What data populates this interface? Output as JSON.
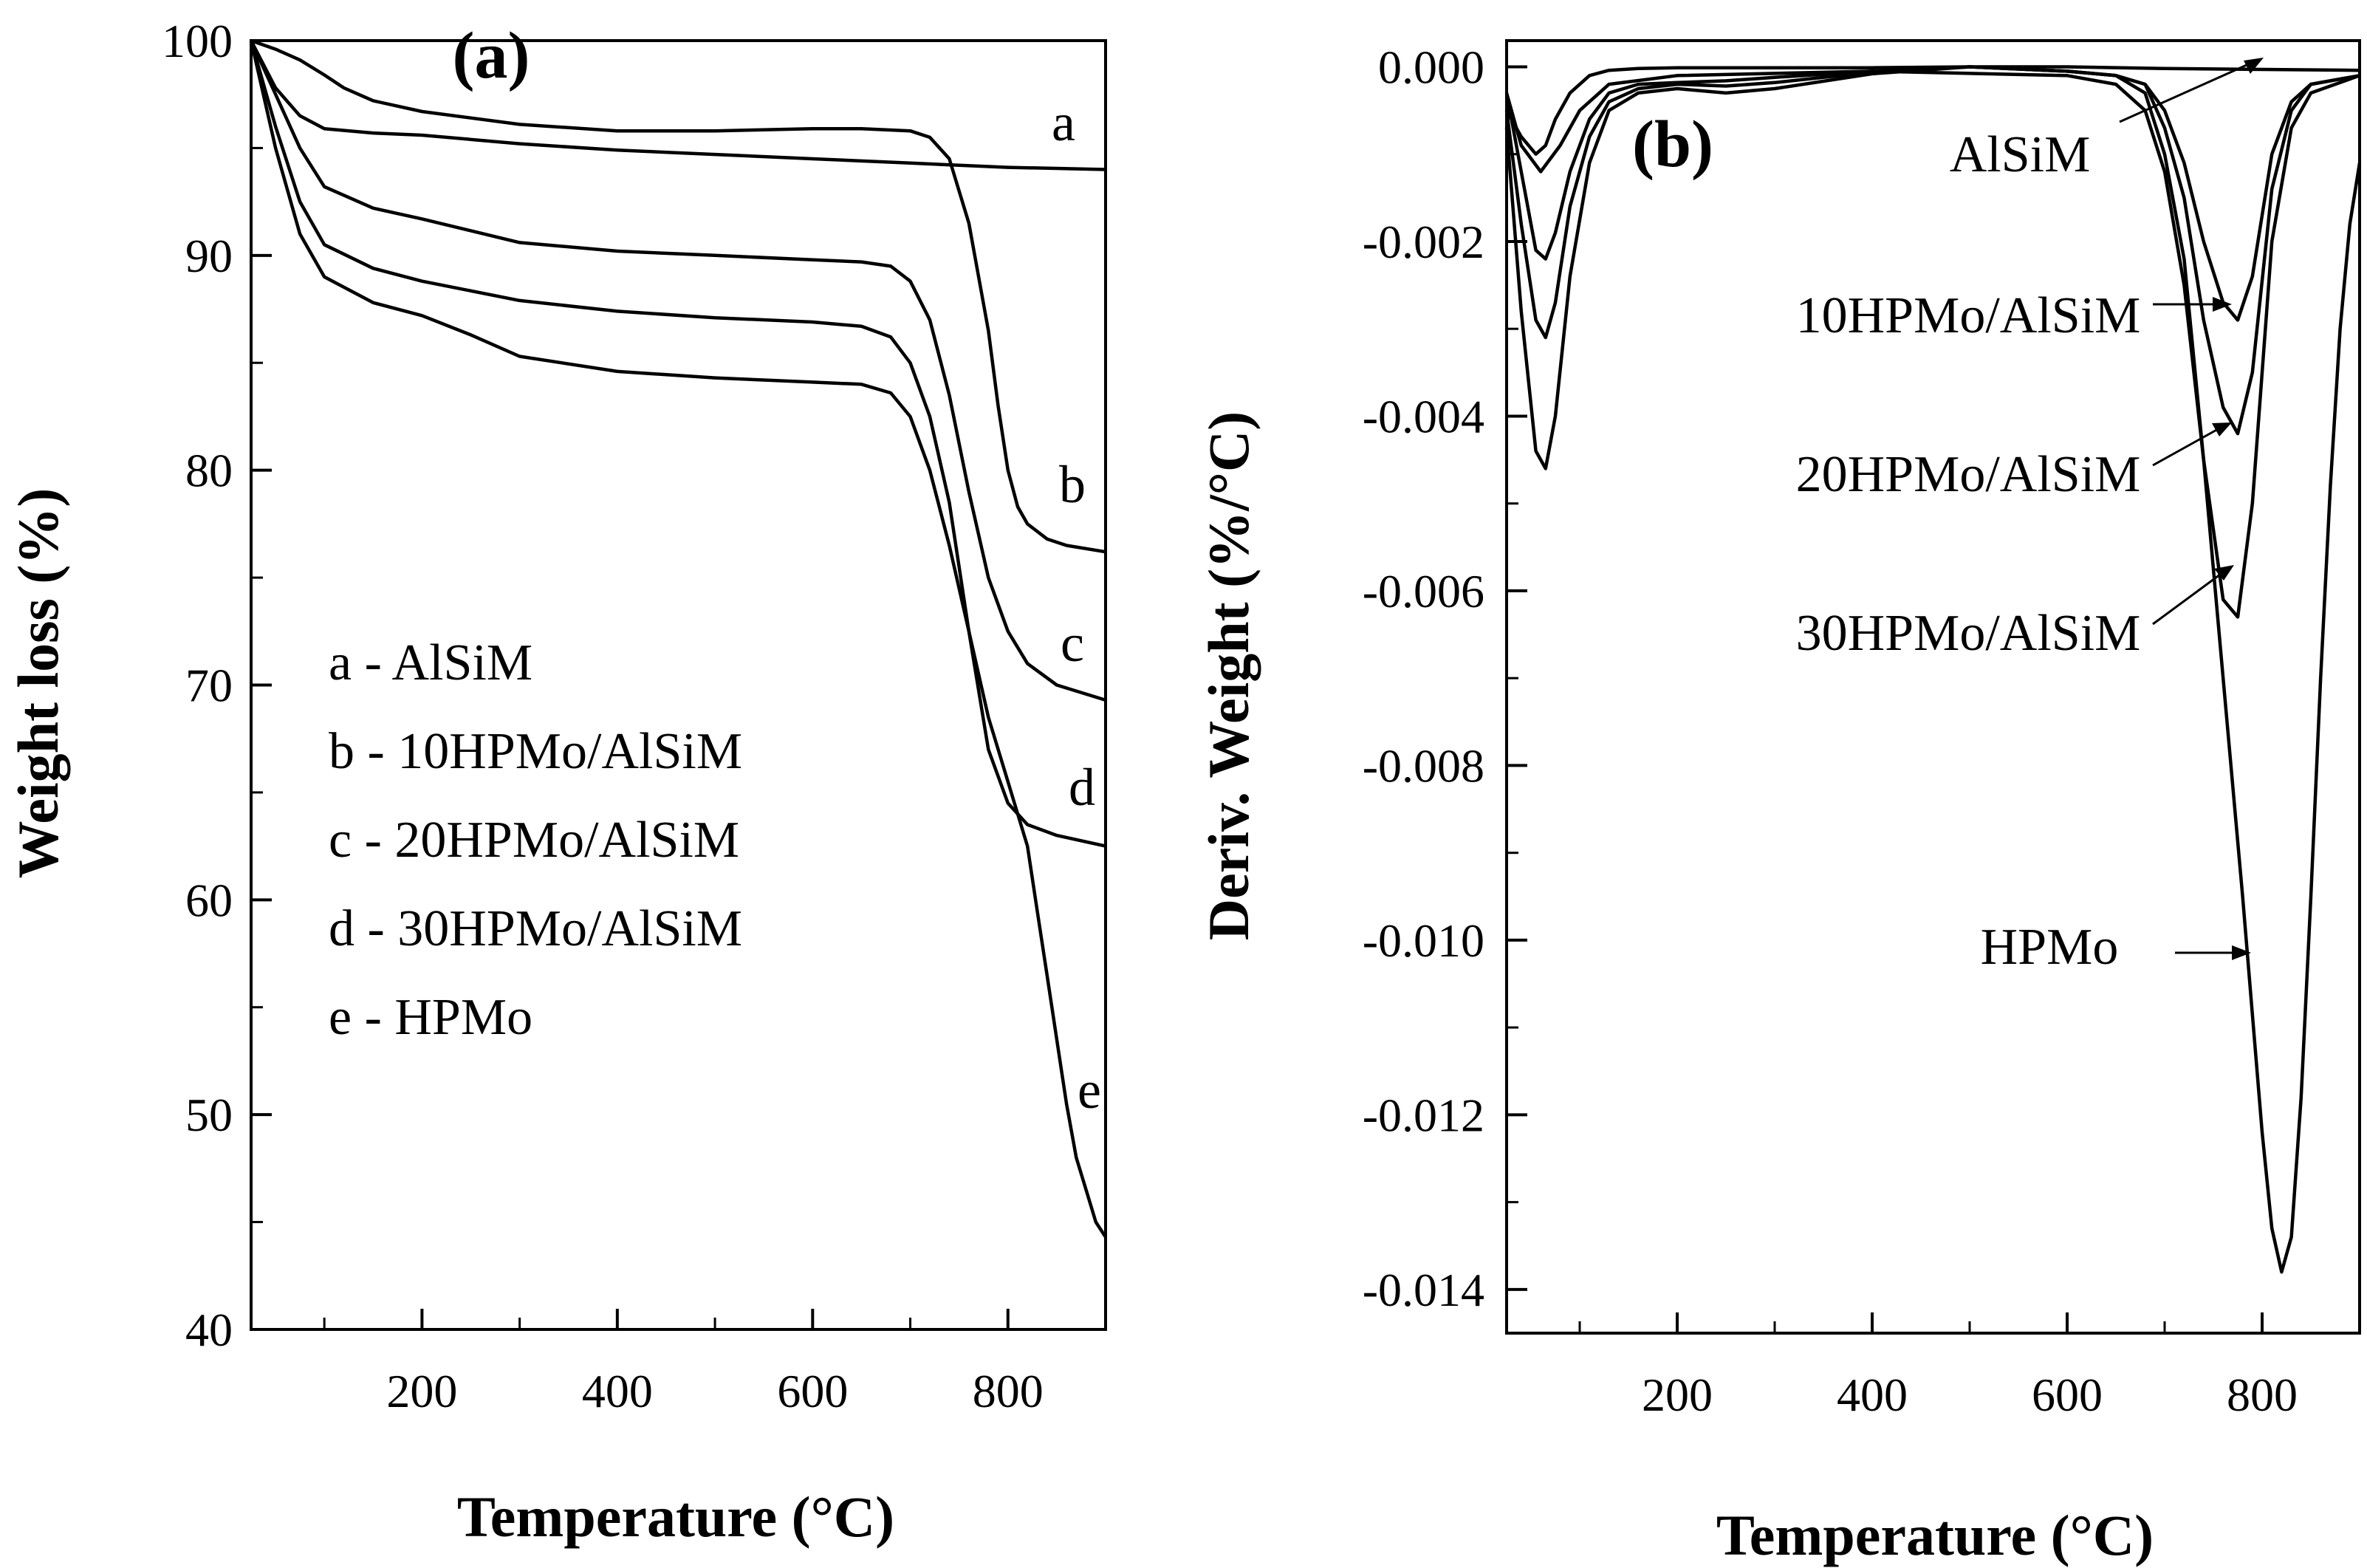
{
  "chart_data": [
    {
      "type": "line",
      "panel": "(a)",
      "xlabel": "Temperature (°C)",
      "ylabel": "Weight loss (%)",
      "xlim": [
        25,
        900
      ],
      "ylim": [
        40,
        100
      ],
      "xticks": [
        200,
        400,
        600,
        800
      ],
      "yticks": [
        40,
        50,
        60,
        70,
        80,
        90,
        100
      ],
      "grid": false,
      "legend": [
        "a - AlSiM",
        "b - 10HPMo/AlSiM",
        "c - 20HPMo/AlSiM",
        "d - 30HPMo/AlSiM",
        "e - HPMo"
      ],
      "legend_position": "center-left",
      "series": [
        {
          "name": "a",
          "x": [
            25,
            50,
            75,
            100,
            150,
            200,
            300,
            400,
            500,
            600,
            700,
            800,
            900
          ],
          "y": [
            100,
            97.8,
            96.5,
            95.9,
            95.7,
            95.6,
            95.2,
            94.9,
            94.7,
            94.5,
            94.3,
            94.1,
            94.0
          ]
        },
        {
          "name": "b",
          "x": [
            25,
            50,
            75,
            100,
            120,
            150,
            200,
            250,
            300,
            400,
            500,
            600,
            650,
            700,
            720,
            740,
            760,
            780,
            790,
            800,
            810,
            820,
            840,
            860,
            900
          ],
          "y": [
            100,
            99.6,
            99.1,
            98.4,
            97.8,
            97.2,
            96.7,
            96.4,
            96.1,
            95.8,
            95.8,
            95.9,
            95.9,
            95.8,
            95.5,
            94.5,
            91.5,
            86.5,
            83.0,
            80.0,
            78.3,
            77.5,
            76.8,
            76.5,
            76.2
          ]
        },
        {
          "name": "c",
          "x": [
            25,
            50,
            75,
            100,
            150,
            200,
            300,
            400,
            500,
            600,
            650,
            680,
            700,
            720,
            740,
            760,
            780,
            800,
            820,
            850,
            900
          ],
          "y": [
            100,
            97.5,
            95.0,
            93.2,
            92.2,
            91.7,
            90.6,
            90.2,
            90.0,
            89.8,
            89.7,
            89.5,
            88.8,
            87.0,
            83.5,
            79.0,
            75.0,
            72.5,
            71.0,
            70.0,
            69.3
          ]
        },
        {
          "name": "d",
          "x": [
            25,
            50,
            75,
            100,
            150,
            200,
            300,
            400,
            500,
            600,
            650,
            680,
            700,
            720,
            740,
            760,
            780,
            800,
            820,
            850,
            900
          ],
          "y": [
            100,
            96.0,
            92.5,
            90.5,
            89.4,
            88.8,
            87.9,
            87.4,
            87.1,
            86.9,
            86.7,
            86.2,
            85.0,
            82.5,
            78.5,
            72.5,
            67.0,
            64.5,
            63.5,
            63.0,
            62.5
          ]
        },
        {
          "name": "e",
          "x": [
            25,
            50,
            75,
            100,
            150,
            200,
            250,
            300,
            400,
            500,
            600,
            650,
            680,
            700,
            720,
            740,
            760,
            780,
            800,
            810,
            820,
            830,
            840,
            850,
            860,
            870,
            880,
            890,
            900
          ],
          "y": [
            100,
            95.0,
            91.0,
            89.0,
            87.8,
            87.2,
            86.3,
            85.3,
            84.6,
            84.3,
            84.1,
            84.0,
            83.6,
            82.5,
            80.0,
            76.5,
            72.5,
            68.5,
            65.5,
            64.0,
            62.5,
            59.5,
            56.5,
            53.5,
            50.5,
            48.0,
            46.5,
            45.0,
            44.3
          ]
        }
      ],
      "curve_labels": [
        "a",
        "b",
        "c",
        "d",
        "e"
      ]
    },
    {
      "type": "line",
      "panel": "(b)",
      "xlabel": "Temperature (°C)",
      "ylabel": "Deriv. Weight  (%/°C)",
      "xlim": [
        25,
        900
      ],
      "ylim": [
        -0.0145,
        0.0003
      ],
      "xticks": [
        200,
        400,
        600,
        800
      ],
      "yticks": [
        0.0,
        -0.002,
        -0.004,
        -0.006,
        -0.008,
        -0.01,
        -0.012,
        -0.014
      ],
      "ytick_labels": [
        "0.000",
        "-0.002",
        "-0.004",
        "-0.006",
        "-0.008",
        "-0.010",
        "-0.012",
        "-0.014"
      ],
      "grid": false,
      "series": [
        {
          "name": "AlSiM",
          "x": [
            25,
            40,
            55,
            65,
            75,
            90,
            110,
            130,
            160,
            200,
            300,
            400,
            500,
            600,
            700,
            800,
            900
          ],
          "y": [
            -0.0005,
            -0.0008,
            -0.001,
            -0.0009,
            -0.0006,
            -0.0003,
            -0.0001,
            -4e-05,
            -2e-05,
            -1e-05,
            -1e-05,
            -1e-05,
            0.0,
            0.0,
            -2e-05,
            -3e-05,
            -4e-05
          ]
        },
        {
          "name": "10HPMo/AlSiM",
          "x": [
            25,
            40,
            55,
            65,
            75,
            90,
            110,
            130,
            160,
            200,
            250,
            300,
            400,
            500,
            600,
            650,
            680,
            700,
            720,
            740,
            760,
            775,
            790,
            810,
            830,
            850,
            900
          ],
          "y": [
            -0.0003,
            -0.0012,
            -0.0021,
            -0.0022,
            -0.0019,
            -0.0012,
            -0.0006,
            -0.0003,
            -0.0002,
            -0.00018,
            -0.00016,
            -0.00012,
            -5e-05,
            0.0,
            -5e-05,
            -0.0001,
            -0.0002,
            -0.0005,
            -0.0011,
            -0.002,
            -0.0027,
            -0.0029,
            -0.0024,
            -0.001,
            -0.0004,
            -0.0002,
            -0.0001
          ]
        },
        {
          "name": "20HPMo/AlSiM",
          "x": [
            25,
            40,
            55,
            65,
            75,
            90,
            110,
            130,
            160,
            200,
            250,
            300,
            400,
            500,
            600,
            650,
            680,
            700,
            720,
            740,
            760,
            775,
            790,
            810,
            830,
            850,
            900
          ],
          "y": [
            -0.0005,
            -0.0018,
            -0.0029,
            -0.0031,
            -0.0027,
            -0.0016,
            -0.0008,
            -0.0004,
            -0.00025,
            -0.0002,
            -0.00022,
            -0.00018,
            -6e-05,
            0.0,
            -5e-05,
            -0.0001,
            -0.0002,
            -0.0007,
            -0.0015,
            -0.0029,
            -0.0039,
            -0.0042,
            -0.0035,
            -0.0014,
            -0.0005,
            -0.0002,
            -0.0001
          ]
        },
        {
          "name": "30HPMo/AlSiM",
          "x": [
            25,
            40,
            55,
            65,
            75,
            90,
            110,
            130,
            160,
            200,
            250,
            300,
            400,
            500,
            600,
            650,
            680,
            700,
            720,
            740,
            760,
            775,
            790,
            810,
            830,
            850,
            900
          ],
          "y": [
            -0.0007,
            -0.0028,
            -0.0044,
            -0.0046,
            -0.004,
            -0.0024,
            -0.0011,
            -0.0005,
            -0.0003,
            -0.00025,
            -0.0003,
            -0.00025,
            -8e-05,
            0.0,
            -5e-05,
            -0.0001,
            -0.0003,
            -0.001,
            -0.0022,
            -0.0045,
            -0.0061,
            -0.0063,
            -0.005,
            -0.002,
            -0.0007,
            -0.0003,
            -0.0001
          ]
        },
        {
          "name": "HPMo",
          "x": [
            25,
            40,
            60,
            80,
            100,
            130,
            200,
            400,
            600,
            650,
            680,
            700,
            720,
            740,
            760,
            780,
            800,
            810,
            820,
            830,
            840,
            850,
            860,
            870,
            880,
            890,
            900
          ],
          "y": [
            -0.0003,
            -0.0009,
            -0.0012,
            -0.0009,
            -0.0005,
            -0.0002,
            -0.0001,
            -5e-05,
            -0.0001,
            -0.0002,
            -0.0005,
            -0.0012,
            -0.0025,
            -0.0045,
            -0.007,
            -0.0095,
            -0.0122,
            -0.0133,
            -0.0138,
            -0.0134,
            -0.0118,
            -0.0095,
            -0.007,
            -0.0048,
            -0.003,
            -0.0018,
            -0.0011
          ]
        }
      ],
      "annotations": [
        "AlSiM",
        "10HPMo/AlSiM",
        "20HPMo/AlSiM",
        "30HPMo/AlSiM",
        "HPMo"
      ]
    }
  ]
}
